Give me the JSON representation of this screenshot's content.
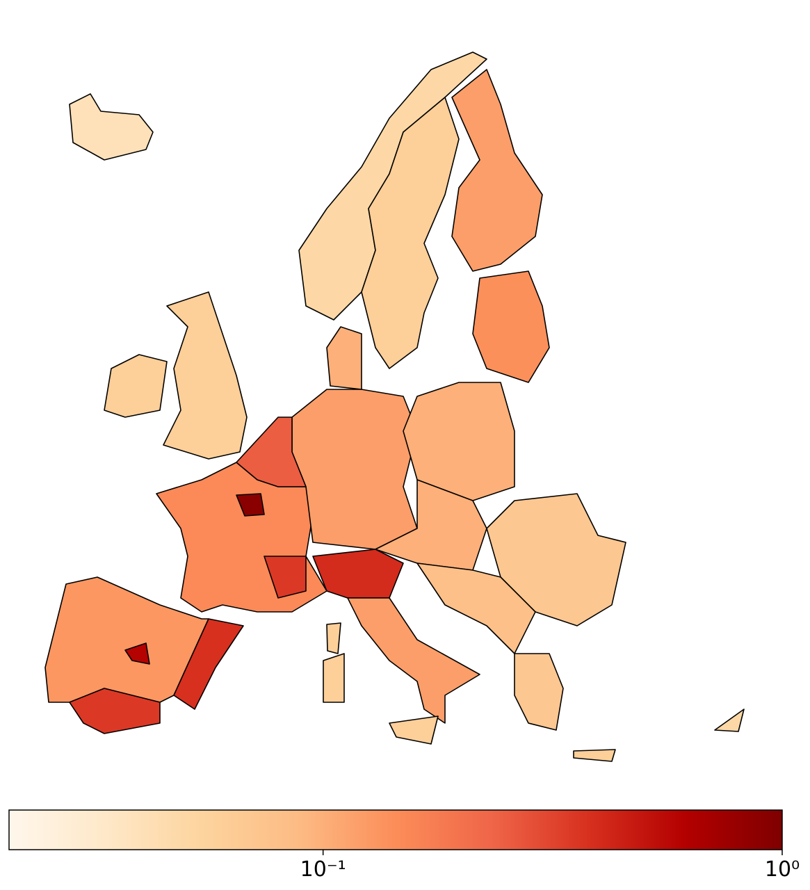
{
  "chart_data": {
    "type": "choropleth",
    "colormap": "OrRd",
    "log_scale": true,
    "values": [
      0.04,
      0.05,
      0.06,
      0.12,
      0.14,
      0.06,
      0.06,
      0.15,
      0.9,
      0.13,
      0.35,
      0.38,
      0.6,
      0.12,
      0.25,
      0.1,
      0.1,
      0.1,
      0.4,
      0.12,
      0.06,
      0.06,
      0.06,
      0.07,
      0.08,
      0.07,
      0.06,
      0.05,
      0.35
    ],
    "xlim": [
      0.0207,
      1
    ],
    "xticks": [
      {
        "value": 0.1,
        "label": "10⁻¹"
      },
      {
        "value": 1,
        "label": "10⁰"
      }
    ]
  }
}
